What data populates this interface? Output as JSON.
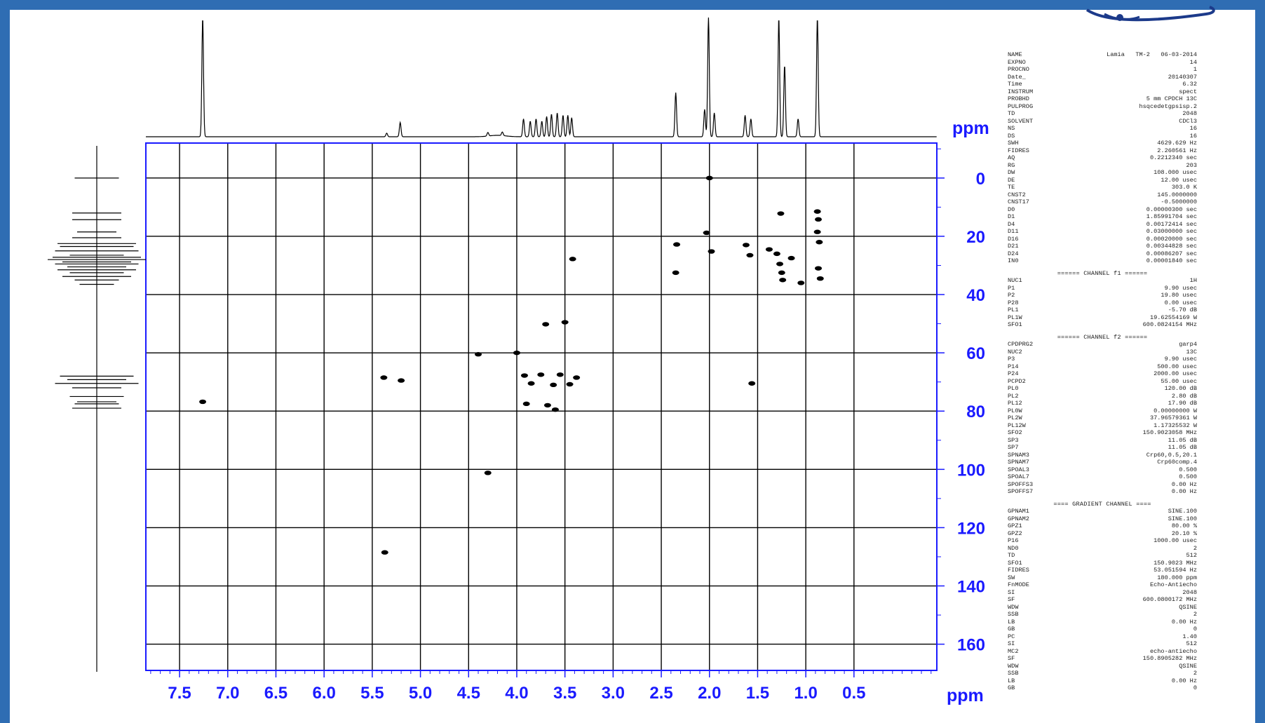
{
  "chart_data": {
    "type": "heatmap",
    "title": "",
    "xlabel": "ppm",
    "ylabel": "ppm",
    "xlim": [
      7.85,
      -0.36
    ],
    "ylim": [
      -12,
      169
    ],
    "x_ticks": [
      7.5,
      7.0,
      6.5,
      6.0,
      5.5,
      5.0,
      4.5,
      4.0,
      3.5,
      3.0,
      2.5,
      2.0,
      1.5,
      1.0,
      0.5
    ],
    "x_tick_labels": [
      "7.5",
      "7.0",
      "6.5",
      "6.0",
      "5.5",
      "5.0",
      "4.5",
      "4.0",
      "3.5",
      "3.0",
      "2.5",
      "2.0",
      "1.5",
      "1.0",
      "0.5"
    ],
    "y_ticks": [
      0,
      20,
      40,
      60,
      80,
      100,
      120,
      140,
      160
    ],
    "y_tick_labels": [
      "0",
      "20",
      "40",
      "60",
      "80",
      "100",
      "120",
      "140",
      "160"
    ],
    "grid": true,
    "cross_peaks": [
      {
        "x": 7.26,
        "y": 76.8
      },
      {
        "x": 5.38,
        "y": 68.5
      },
      {
        "x": 5.2,
        "y": 69.5
      },
      {
        "x": 5.37,
        "y": 128.5
      },
      {
        "x": 4.3,
        "y": 101.2
      },
      {
        "x": 4.4,
        "y": 60.5
      },
      {
        "x": 4.0,
        "y": 60.0
      },
      {
        "x": 3.92,
        "y": 67.8
      },
      {
        "x": 3.75,
        "y": 67.5
      },
      {
        "x": 3.55,
        "y": 67.5
      },
      {
        "x": 3.38,
        "y": 68.5
      },
      {
        "x": 3.85,
        "y": 70.5
      },
      {
        "x": 3.62,
        "y": 71.0
      },
      {
        "x": 3.45,
        "y": 70.8
      },
      {
        "x": 3.9,
        "y": 77.5
      },
      {
        "x": 3.68,
        "y": 78.0
      },
      {
        "x": 3.6,
        "y": 79.5
      },
      {
        "x": 3.5,
        "y": 49.5
      },
      {
        "x": 3.7,
        "y": 50.2
      },
      {
        "x": 3.42,
        "y": 27.8
      },
      {
        "x": 2.35,
        "y": 32.5
      },
      {
        "x": 2.34,
        "y": 22.8
      },
      {
        "x": 2.03,
        "y": 18.8
      },
      {
        "x": 1.98,
        "y": 25.2
      },
      {
        "x": 2.0,
        "y": 0.0
      },
      {
        "x": 1.62,
        "y": 23.0
      },
      {
        "x": 1.58,
        "y": 26.5
      },
      {
        "x": 1.56,
        "y": 70.5
      },
      {
        "x": 1.38,
        "y": 24.5
      },
      {
        "x": 1.3,
        "y": 26.0
      },
      {
        "x": 1.27,
        "y": 29.5
      },
      {
        "x": 1.25,
        "y": 32.5
      },
      {
        "x": 1.24,
        "y": 35.0
      },
      {
        "x": 1.15,
        "y": 27.5
      },
      {
        "x": 1.05,
        "y": 36.0
      },
      {
        "x": 1.26,
        "y": 12.2
      },
      {
        "x": 0.88,
        "y": 11.5
      },
      {
        "x": 0.87,
        "y": 14.2
      },
      {
        "x": 0.88,
        "y": 18.5
      },
      {
        "x": 0.86,
        "y": 22.0
      },
      {
        "x": 0.87,
        "y": 31.0
      },
      {
        "x": 0.85,
        "y": 34.5
      }
    ],
    "h1_projection_peaks": [
      {
        "x": 7.26,
        "h": 1.0
      },
      {
        "x": 5.35,
        "h": 0.03
      },
      {
        "x": 5.21,
        "h": 0.12
      },
      {
        "x": 4.3,
        "h": 0.03
      },
      {
        "x": 4.15,
        "h": 0.03
      },
      {
        "x": 3.93,
        "h": 0.15
      },
      {
        "x": 3.86,
        "h": 0.13
      },
      {
        "x": 3.8,
        "h": 0.15
      },
      {
        "x": 3.74,
        "h": 0.13
      },
      {
        "x": 3.69,
        "h": 0.17
      },
      {
        "x": 3.64,
        "h": 0.19
      },
      {
        "x": 3.58,
        "h": 0.2
      },
      {
        "x": 3.52,
        "h": 0.18
      },
      {
        "x": 3.47,
        "h": 0.18
      },
      {
        "x": 3.43,
        "h": 0.16
      },
      {
        "x": 2.35,
        "h": 0.37
      },
      {
        "x": 2.05,
        "h": 0.23
      },
      {
        "x": 2.01,
        "h": 1.0
      },
      {
        "x": 1.95,
        "h": 0.2
      },
      {
        "x": 1.63,
        "h": 0.18
      },
      {
        "x": 1.57,
        "h": 0.15
      },
      {
        "x": 1.28,
        "h": 1.0
      },
      {
        "x": 1.22,
        "h": 0.6
      },
      {
        "x": 1.08,
        "h": 0.15
      },
      {
        "x": 0.88,
        "h": 1.0
      }
    ],
    "c13_projection_peaks": [
      {
        "y": 0.0,
        "h": 0.45
      },
      {
        "y": 12.0,
        "h": 0.5
      },
      {
        "y": 14.3,
        "h": 0.5
      },
      {
        "y": 18.5,
        "h": 0.4
      },
      {
        "y": 20.5,
        "h": 0.5
      },
      {
        "y": 22.5,
        "h": 0.8
      },
      {
        "y": 23.5,
        "h": 0.75
      },
      {
        "y": 25.0,
        "h": 0.85
      },
      {
        "y": 26.5,
        "h": 0.55
      },
      {
        "y": 27.2,
        "h": 0.9
      },
      {
        "y": 28.0,
        "h": 1.0
      },
      {
        "y": 28.8,
        "h": 0.7
      },
      {
        "y": 29.5,
        "h": 0.85
      },
      {
        "y": 30.5,
        "h": 0.6
      },
      {
        "y": 31.5,
        "h": 0.8
      },
      {
        "y": 32.5,
        "h": 0.55
      },
      {
        "y": 33.8,
        "h": 0.7
      },
      {
        "y": 35.0,
        "h": 0.45
      },
      {
        "y": 36.5,
        "h": 0.35
      },
      {
        "y": 68.0,
        "h": 0.75
      },
      {
        "y": 69.2,
        "h": 0.6
      },
      {
        "y": 70.5,
        "h": 0.85
      },
      {
        "y": 72.0,
        "h": 0.5
      },
      {
        "y": 75.0,
        "h": 0.55
      },
      {
        "y": 76.8,
        "h": 0.4
      },
      {
        "y": 77.5,
        "h": 0.45
      },
      {
        "y": 79.0,
        "h": 0.5
      }
    ]
  },
  "parameters": {
    "section1": [
      [
        "NAME",
        "Lamia   TM-2   06-03-2014"
      ],
      [
        "EXPNO",
        "14"
      ],
      [
        "PROCNO",
        "1"
      ],
      [
        "Date_",
        "20140307"
      ],
      [
        "Time",
        "6.32"
      ],
      [
        "INSTRUM",
        "spect"
      ],
      [
        "PROBHD",
        "5 mm CPDCH 13C"
      ],
      [
        "PULPROG",
        "hsqcedetgpsisp.2"
      ],
      [
        "TD",
        "2048"
      ],
      [
        "SOLVENT",
        "CDCl3"
      ],
      [
        "NS",
        "16"
      ],
      [
        "DS",
        "16"
      ],
      [
        "SWH",
        "4629.629 Hz"
      ],
      [
        "FIDRES",
        "2.260561 Hz"
      ],
      [
        "AQ",
        "0.2212340 sec"
      ],
      [
        "RG",
        "203"
      ],
      [
        "DW",
        "108.000 usec"
      ],
      [
        "DE",
        "12.00 usec"
      ],
      [
        "TE",
        "303.0 K"
      ],
      [
        "CNST2",
        "145.0000000"
      ],
      [
        "CNST17",
        "-0.5000000"
      ],
      [
        "D0",
        "0.00000300 sec"
      ],
      [
        "D1",
        "1.85991704 sec"
      ],
      [
        "D4",
        "0.00172414 sec"
      ],
      [
        "D11",
        "0.03000000 sec"
      ],
      [
        "D16",
        "0.00020000 sec"
      ],
      [
        "D21",
        "0.00344828 sec"
      ],
      [
        "D24",
        "0.00086207 sec"
      ],
      [
        "IN0",
        "0.00001840 sec"
      ]
    ],
    "channel_f1_title": "====== CHANNEL f1 ======",
    "section2": [
      [
        "NUC1",
        "1H"
      ],
      [
        "P1",
        "9.90 usec"
      ],
      [
        "P2",
        "19.80 usec"
      ],
      [
        "P28",
        "0.00 usec"
      ],
      [
        "PL1",
        "-5.70 dB"
      ],
      [
        "PL1W",
        "19.62554169 W"
      ],
      [
        "SFO1",
        "600.0824154 MHz"
      ]
    ],
    "channel_f2_title": "====== CHANNEL f2 ======",
    "section3": [
      [
        "CPDPRG2",
        "garp4"
      ],
      [
        "NUC2",
        "13C"
      ],
      [
        "P3",
        "9.90 usec"
      ],
      [
        "P14",
        "500.00 usec"
      ],
      [
        "P24",
        "2000.00 usec"
      ],
      [
        "PCPD2",
        "55.00 usec"
      ],
      [
        "PL0",
        "120.00 dB"
      ],
      [
        "PL2",
        "2.80 dB"
      ],
      [
        "PL12",
        "17.90 dB"
      ],
      [
        "PL0W",
        "0.00000000 W"
      ],
      [
        "PL2W",
        "37.96579361 W"
      ],
      [
        "PL12W",
        "1.17325532 W"
      ],
      [
        "SFO2",
        "150.9023058 MHz"
      ],
      [
        "SP3",
        "11.05 dB"
      ],
      [
        "SP7",
        "11.05 dB"
      ],
      [
        "SPNAM3",
        "Crp60,0.5,20.1"
      ],
      [
        "SPNAM7",
        "Crp60comp.4"
      ],
      [
        "SPOAL3",
        "0.500"
      ],
      [
        "SPOAL7",
        "0.500"
      ],
      [
        "SPOFFS3",
        "0.00 Hz"
      ],
      [
        "SPOFFS7",
        "0.00 Hz"
      ]
    ],
    "gradient_title": "==== GRADIENT CHANNEL ====",
    "section4": [
      [
        "GPNAM1",
        "SINE.100"
      ],
      [
        "GPNAM2",
        "SINE.100"
      ],
      [
        "GPZ1",
        "80.00 %"
      ],
      [
        "GPZ2",
        "20.10 %"
      ],
      [
        "P16",
        "1000.00 usec"
      ],
      [
        "ND0",
        "2"
      ],
      [
        "TD",
        "512"
      ],
      [
        "SFO1",
        "150.9023 MHz"
      ],
      [
        "FIDRES",
        "53.051594 Hz"
      ],
      [
        "SW",
        "180.000 ppm"
      ],
      [
        "FnMODE",
        "Echo-Antiecho"
      ],
      [
        "SI",
        "2048"
      ],
      [
        "SF",
        "600.0800172 MHz"
      ],
      [
        "WDW",
        "QSINE"
      ],
      [
        "SSB",
        "2"
      ],
      [
        "LB",
        "0.00 Hz"
      ],
      [
        "GB",
        "0"
      ],
      [
        "PC",
        "1.40"
      ],
      [
        "SI",
        "512"
      ],
      [
        "MC2",
        "echo-antiecho"
      ],
      [
        "SF",
        "150.8905282 MHz"
      ],
      [
        "WDW",
        "QSINE"
      ],
      [
        "SSB",
        "2"
      ],
      [
        "LB",
        "0.00 Hz"
      ],
      [
        "GB",
        "0"
      ]
    ]
  }
}
